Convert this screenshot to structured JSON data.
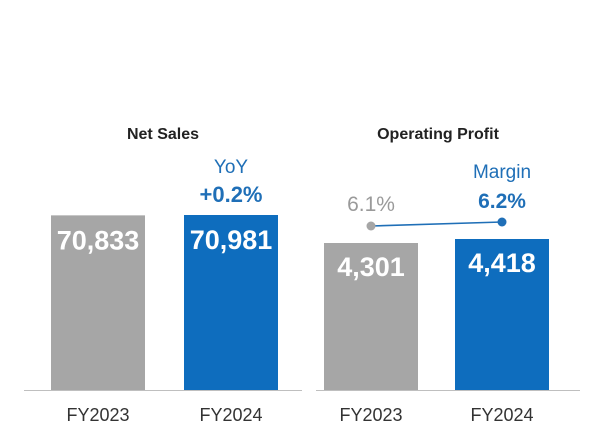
{
  "chart_data": [
    {
      "type": "bar",
      "title": "Net Sales",
      "categories": [
        "FY2023",
        "FY2024"
      ],
      "values": [
        70833,
        70981
      ],
      "value_labels": [
        "70,833",
        "70,981"
      ],
      "colors": [
        "#a6a6a6",
        "#0e6dbe"
      ],
      "annotation": {
        "label": "YoY",
        "value": "+0.2%"
      }
    },
    {
      "type": "bar",
      "title": "Operating Profit",
      "categories": [
        "FY2023",
        "FY2024"
      ],
      "values": [
        4301,
        4418
      ],
      "value_labels": [
        "4,301",
        "4,418"
      ],
      "colors": [
        "#a6a6a6",
        "#0e6dbe"
      ],
      "margin_line": {
        "label": "Margin",
        "values": [
          6.1,
          6.2
        ],
        "value_labels": [
          "6.1%",
          "6.2%"
        ]
      }
    }
  ],
  "colors": {
    "previous_year": "#a6a6a6",
    "current_year": "#0e6dbe",
    "accent_text": "#1f6fb7",
    "muted_text": "#9a9a9a",
    "axis": "#bfbfbf",
    "title_text": "#222222"
  }
}
